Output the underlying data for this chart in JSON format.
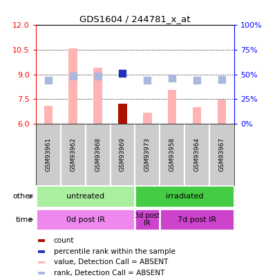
{
  "title": "GDS1604 / 244781_x_at",
  "samples": [
    "GSM93961",
    "GSM93962",
    "GSM93968",
    "GSM93969",
    "GSM93973",
    "GSM93958",
    "GSM93964",
    "GSM93967"
  ],
  "bar_values": [
    7.1,
    10.6,
    9.4,
    7.2,
    6.65,
    8.05,
    7.0,
    7.45
  ],
  "bar_colors": [
    "#ffb3b3",
    "#ffb3b3",
    "#ffb3b3",
    "#aa1100",
    "#ffb3b3",
    "#ffb3b3",
    "#ffb3b3",
    "#ffb3b3"
  ],
  "rank_values": [
    44,
    48,
    48,
    51,
    44,
    46,
    44,
    45
  ],
  "rank_colors": [
    "#aab8dd",
    "#aab8dd",
    "#aab8dd",
    "#2233bb",
    "#aab8dd",
    "#aab8dd",
    "#aab8dd",
    "#aab8dd"
  ],
  "ylim_left": [
    6,
    12
  ],
  "ylim_right": [
    0,
    100
  ],
  "yticks_left": [
    6,
    7.5,
    9,
    10.5,
    12
  ],
  "yticks_right": [
    0,
    25,
    50,
    75,
    100
  ],
  "group_other": [
    {
      "label": "untreated",
      "start": 0,
      "end": 4,
      "color": "#aaeea0"
    },
    {
      "label": "irradiated",
      "start": 4,
      "end": 8,
      "color": "#44cc44"
    }
  ],
  "group_time": [
    {
      "label": "0d post IR",
      "start": 0,
      "end": 4,
      "color": "#ee88ee"
    },
    {
      "label": "3d post\nIR",
      "start": 4,
      "end": 5,
      "color": "#cc44cc"
    },
    {
      "label": "7d post IR",
      "start": 5,
      "end": 8,
      "color": "#cc44cc"
    }
  ],
  "bar_width": 0.35,
  "rank_marker_size": 55,
  "background_color": "#ffffff",
  "plot_bg_color": "#ffffff",
  "sample_area_color": "#cccccc",
  "legend_items": [
    {
      "color": "#aa1100",
      "label": "count"
    },
    {
      "color": "#2233bb",
      "label": "percentile rank within the sample"
    },
    {
      "color": "#ffb3b3",
      "label": "value, Detection Call = ABSENT"
    },
    {
      "color": "#aab8dd",
      "label": "rank, Detection Call = ABSENT"
    }
  ]
}
